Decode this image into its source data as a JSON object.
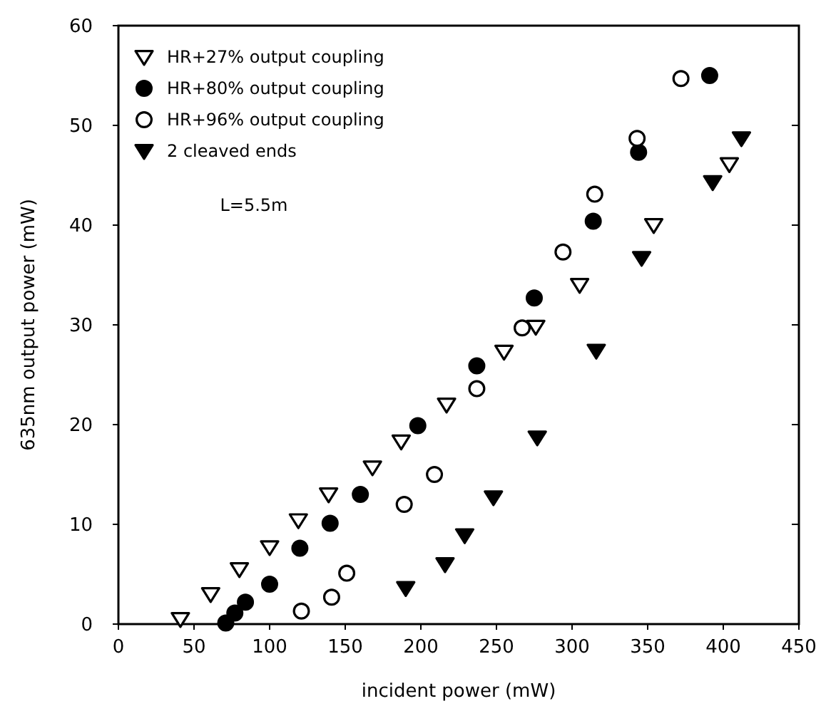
{
  "chart_data": {
    "type": "scatter",
    "xlabel": "incident power (mW)",
    "ylabel": "635nm output power (mW)",
    "xlim": [
      0,
      450
    ],
    "xticks": [
      0,
      50,
      100,
      150,
      200,
      250,
      300,
      350,
      400,
      450
    ],
    "ylim": [
      0,
      60
    ],
    "yticks": [
      0,
      10,
      20,
      30,
      40,
      50,
      60
    ],
    "legend": "top left",
    "grid": false,
    "annotations": [
      "L=5.5m"
    ],
    "series": [
      {
        "name": "HR+27% output coupling",
        "color": "#000000",
        "marker": "triangle-down-open",
        "x": [
          41,
          61,
          80,
          100,
          119,
          139,
          168,
          187,
          217,
          255,
          276,
          305,
          354,
          404
        ],
        "values": [
          0.5,
          3,
          5.5,
          7.7,
          10.4,
          13,
          15.7,
          18.3,
          22,
          27.3,
          29.8,
          34,
          40,
          46.1
        ]
      },
      {
        "name": "HR+80% output coupling",
        "color": "#000000",
        "marker": "circle",
        "x": [
          71,
          77,
          84,
          100,
          120,
          140,
          160,
          198,
          237,
          275,
          314,
          344,
          391
        ],
        "values": [
          0.1,
          1.1,
          2.2,
          4,
          7.6,
          10.1,
          13,
          19.9,
          25.9,
          32.7,
          40.4,
          47.3,
          55
        ]
      },
      {
        "name": "HR+96% output coupling",
        "color": "#000000",
        "marker": "circle-open",
        "x": [
          121,
          141,
          151,
          189,
          209,
          237,
          267,
          294,
          315,
          343,
          372
        ],
        "values": [
          1.3,
          2.7,
          5.1,
          12,
          15,
          23.6,
          29.7,
          37.3,
          43.1,
          48.7,
          54.7
        ]
      },
      {
        "name": "2 cleaved ends",
        "color": "#000000",
        "marker": "triangle-down",
        "x": [
          190,
          216,
          229,
          248,
          277,
          316,
          346,
          393,
          412
        ],
        "values": [
          3.6,
          6,
          8.9,
          12.7,
          18.7,
          27.4,
          36.7,
          44.3,
          48.7
        ]
      }
    ]
  }
}
